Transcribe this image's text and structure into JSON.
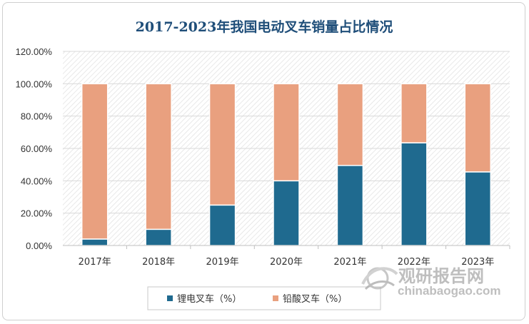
{
  "colors": {
    "lithium": "#1f6a8f",
    "lead_acid": "#e9a07f",
    "title": "#1f4e79",
    "grid": "#d9d9d9",
    "hatch": "#e3e3e3"
  },
  "watermark": {
    "cn": "观研报告网",
    "en": "chinabaogao.com",
    "icon": "globe-swirl-icon"
  },
  "chart_data": {
    "type": "bar",
    "stacked": true,
    "title": "2017-2023年我国电动叉车销量占比情况",
    "xlabel": "",
    "ylabel": "",
    "categories": [
      "2017年",
      "2018年",
      "2019年",
      "2020年",
      "2021年",
      "2022年",
      "2023年"
    ],
    "series": [
      {
        "name": "锂电叉车（%）",
        "values": [
          4.0,
          10.0,
          25.0,
          40.0,
          49.5,
          63.5,
          45.5
        ]
      },
      {
        "name": "铅酸叉车（%）",
        "values": [
          96.0,
          90.0,
          75.0,
          60.0,
          50.5,
          36.5,
          54.5
        ]
      }
    ],
    "ylim": [
      0,
      120
    ],
    "yticks": [
      "0.00%",
      "20.00%",
      "40.00%",
      "60.00%",
      "80.00%",
      "100.00%",
      "120.00%"
    ],
    "grid": true,
    "legend_position": "bottom"
  }
}
